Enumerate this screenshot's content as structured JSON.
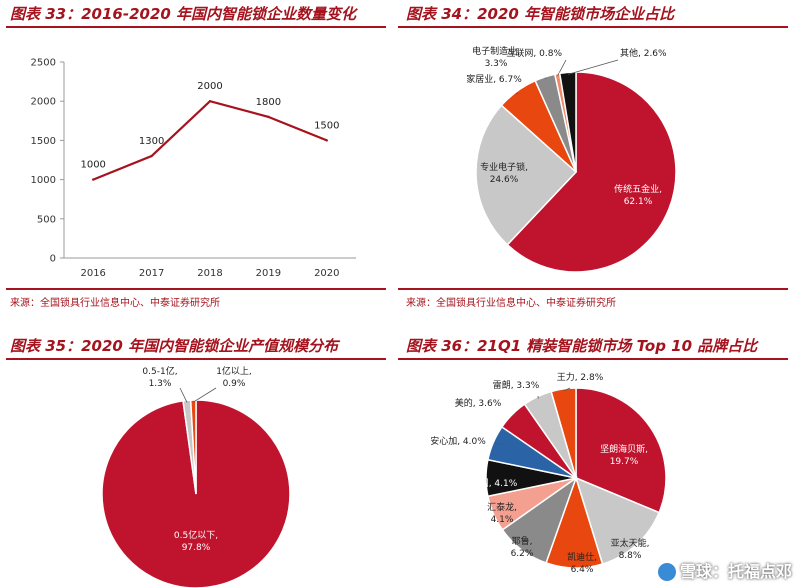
{
  "panels": [
    {
      "title": "图表 33：2016-2020 年国内智能锁企业数量变化",
      "source": "来源：全国锁具行业信息中心、中泰证券研究所"
    },
    {
      "title": "图表 34：2020 年智能锁市场企业占比",
      "source": "来源：全国锁具行业信息中心、中泰证券研究所"
    },
    {
      "title": "图表 35：2020 年国内智能锁企业产值规模分布",
      "source": ""
    },
    {
      "title": "图表 36：21Q1 精装智能锁市场 Top 10 品牌占比",
      "source": ""
    }
  ],
  "watermark": "雪球：托福点邓",
  "chart_data": [
    {
      "type": "line",
      "x": [
        "2016",
        "2017",
        "2018",
        "2019",
        "2020"
      ],
      "series": [
        {
          "values": [
            1000,
            1300,
            2000,
            1800,
            1500
          ],
          "color": "#a5141e"
        }
      ],
      "data_labels": [
        "1000",
        "1300",
        "2000",
        "1800",
        "1500"
      ],
      "ylim": [
        0,
        2500
      ],
      "yticks": [
        "0",
        "500",
        "1000",
        "1500",
        "2000",
        "2500"
      ],
      "grid": false
    },
    {
      "type": "pie",
      "slices": [
        {
          "label": "传统五金业",
          "value": 62.1,
          "pct": "62.1%",
          "color": "#c0142e"
        },
        {
          "label": "专业电子锁",
          "value": 24.6,
          "pct": "24.6%",
          "color": "#c8c8c8"
        },
        {
          "label": "家居业",
          "value": 6.7,
          "pct": "6.7%",
          "color": "#e8470f"
        },
        {
          "label": "电子制造业",
          "value": 3.3,
          "pct": "3.3%",
          "color": "#8a8a8a"
        },
        {
          "label": "互联网",
          "value": 0.8,
          "pct": "0.8%",
          "color": "#f08a6a"
        },
        {
          "label": "其他",
          "value": 2.6,
          "pct": "2.6%",
          "color": "#111111"
        }
      ]
    },
    {
      "type": "pie",
      "slices": [
        {
          "label": "0.5亿以下",
          "value": 97.8,
          "pct": "97.8%",
          "color": "#c0142e"
        },
        {
          "label": "0.5-1亿",
          "value": 1.3,
          "pct": "1.3%",
          "color": "#c8c8c8"
        },
        {
          "label": "1亿以上",
          "value": 0.9,
          "pct": "0.9%",
          "color": "#e8470f"
        }
      ]
    },
    {
      "type": "pie",
      "slices": [
        {
          "label": "坚朗海贝斯",
          "value": 19.7,
          "pct": "19.7%",
          "color": "#c0142e"
        },
        {
          "label": "亚太天能",
          "value": 8.8,
          "pct": "8.8%",
          "color": "#c8c8c8"
        },
        {
          "label": "凯迪仕",
          "value": 6.4,
          "pct": "6.4%",
          "color": "#e8470f"
        },
        {
          "label": "耶鲁",
          "value": 6.2,
          "pct": "6.2%",
          "color": "#8a8a8a"
        },
        {
          "label": "汇泰龙",
          "value": 4.1,
          "pct": "4.1%",
          "color": "#f4a090"
        },
        {
          "label": "名门",
          "value": 4.1,
          "pct": "4.1%",
          "color": "#111111"
        },
        {
          "label": "安心加",
          "value": 4.0,
          "pct": "4.0%",
          "color": "#2a64a6"
        },
        {
          "label": "美的",
          "value": 3.6,
          "pct": "3.6%",
          "color": "#c0142e"
        },
        {
          "label": "雷朗",
          "value": 3.3,
          "pct": "3.3%",
          "color": "#c8c8c8"
        },
        {
          "label": "王力",
          "value": 2.8,
          "pct": "2.8%",
          "color": "#e8470f"
        }
      ]
    }
  ]
}
